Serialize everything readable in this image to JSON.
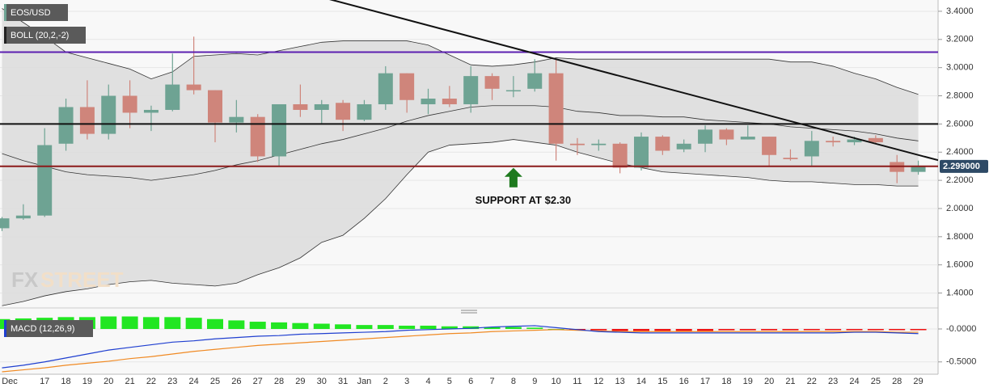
{
  "chart_data": [
    {
      "type": "candlestick",
      "symbol": "EOS/USD",
      "indicator": "BOLL (20,2,-2)",
      "watermark": [
        "FX",
        "STREET"
      ],
      "categories": [
        "Dec",
        null,
        "17",
        "18",
        "19",
        "20",
        "21",
        "22",
        "23",
        "24",
        "25",
        "26",
        "27",
        "28",
        "29",
        "30",
        "31",
        "Jan",
        "2",
        "3",
        "4",
        "5",
        "6",
        "7",
        "8",
        "9",
        "10",
        "11",
        "12",
        "13",
        "14",
        "15",
        "16",
        "17",
        "18",
        "19",
        "20",
        "21",
        "22",
        "23",
        "24",
        "25",
        "28",
        "29"
      ],
      "open": [
        1.86,
        1.93,
        1.95,
        2.46,
        2.72,
        2.53,
        2.8,
        2.68,
        2.7,
        2.88,
        2.84,
        2.61,
        2.65,
        2.37,
        2.74,
        2.7,
        2.75,
        2.63,
        2.74,
        2.96,
        2.74,
        2.78,
        2.74,
        2.94,
        2.84,
        2.85,
        2.96,
        2.46,
        2.45,
        2.46,
        2.29,
        2.51,
        2.42,
        2.46,
        2.56,
        2.49,
        2.51,
        2.36,
        2.37,
        2.48,
        2.47,
        2.5,
        2.33,
        2.26
      ],
      "high": [
        1.94,
        2.03,
        2.57,
        2.78,
        2.91,
        2.88,
        2.91,
        2.73,
        3.1,
        3.22,
        2.84,
        2.77,
        2.67,
        2.74,
        2.88,
        2.77,
        2.77,
        2.77,
        3.01,
        2.96,
        2.85,
        2.87,
        3.01,
        2.96,
        2.94,
        3.06,
        3.06,
        2.5,
        2.49,
        2.47,
        2.54,
        2.52,
        2.49,
        2.59,
        2.57,
        2.59,
        2.51,
        2.42,
        2.55,
        2.51,
        2.51,
        2.52,
        2.38,
        2.34
      ],
      "low": [
        1.84,
        1.92,
        1.94,
        2.41,
        2.49,
        2.49,
        2.57,
        2.55,
        2.69,
        2.81,
        2.47,
        2.54,
        2.33,
        2.3,
        2.65,
        2.6,
        2.55,
        2.62,
        2.7,
        2.68,
        2.67,
        2.72,
        2.68,
        2.77,
        2.79,
        2.83,
        2.34,
        2.38,
        2.41,
        2.25,
        2.27,
        2.38,
        2.4,
        2.4,
        2.45,
        2.49,
        2.3,
        2.34,
        2.3,
        2.44,
        2.45,
        2.46,
        2.18,
        2.24
      ],
      "close": [
        1.93,
        1.95,
        2.45,
        2.72,
        2.53,
        2.8,
        2.68,
        2.7,
        2.88,
        2.84,
        2.61,
        2.65,
        2.37,
        2.74,
        2.7,
        2.74,
        2.63,
        2.74,
        2.96,
        2.77,
        2.78,
        2.74,
        2.94,
        2.85,
        2.84,
        2.96,
        2.46,
        2.45,
        2.46,
        2.29,
        2.51,
        2.41,
        2.46,
        2.56,
        2.49,
        2.51,
        2.38,
        2.35,
        2.48,
        2.47,
        2.49,
        2.47,
        2.26,
        2.3
      ],
      "up_color": "#6ea393",
      "down_color": "#cf857b",
      "bands": {
        "color": "#333333",
        "fill": "#dcdcdc",
        "upper": [
          3.42,
          3.32,
          3.22,
          3.11,
          3.07,
          3.03,
          2.99,
          2.92,
          2.97,
          3.08,
          3.09,
          3.1,
          3.09,
          3.12,
          3.15,
          3.18,
          3.19,
          3.19,
          3.19,
          3.19,
          3.16,
          3.09,
          3.02,
          3.01,
          3.02,
          3.04,
          3.07,
          3.06,
          3.06,
          3.06,
          3.06,
          3.06,
          3.06,
          3.06,
          3.06,
          3.06,
          3.06,
          3.04,
          3.04,
          3.01,
          2.96,
          2.92,
          2.86,
          2.81
        ],
        "middle": [
          2.39,
          2.34,
          2.3,
          2.26,
          2.24,
          2.23,
          2.22,
          2.2,
          2.22,
          2.24,
          2.27,
          2.31,
          2.34,
          2.38,
          2.42,
          2.46,
          2.49,
          2.53,
          2.57,
          2.62,
          2.66,
          2.69,
          2.72,
          2.73,
          2.73,
          2.73,
          2.72,
          2.69,
          2.68,
          2.66,
          2.66,
          2.65,
          2.65,
          2.63,
          2.62,
          2.61,
          2.6,
          2.58,
          2.57,
          2.56,
          2.55,
          2.53,
          2.5,
          2.48
        ],
        "lower": [
          1.31,
          1.34,
          1.38,
          1.41,
          1.43,
          1.46,
          1.48,
          1.49,
          1.47,
          1.46,
          1.45,
          1.47,
          1.53,
          1.58,
          1.65,
          1.76,
          1.81,
          1.93,
          2.07,
          2.24,
          2.4,
          2.45,
          2.46,
          2.47,
          2.49,
          2.47,
          2.45,
          2.4,
          2.36,
          2.32,
          2.29,
          2.26,
          2.25,
          2.24,
          2.23,
          2.22,
          2.2,
          2.19,
          2.19,
          2.18,
          2.17,
          2.17,
          2.16,
          2.16
        ]
      },
      "hlines": [
        {
          "value": 3.11,
          "color": "#5b1fb0"
        },
        {
          "value": 2.6,
          "color": "#111111"
        },
        {
          "value": 2.3,
          "color": "#8b1a1a"
        }
      ],
      "trendline": {
        "x": [
          16,
          43
        ],
        "values": [
          3.46,
          2.38
        ],
        "color": "#111111"
      },
      "annotation": {
        "text": "SUPPORT AT $2.30",
        "x": 24,
        "value": 2.3,
        "color": "#1e7a1e"
      },
      "last_price": {
        "value": 2.299,
        "label": "2.299000"
      },
      "ylim": [
        1.3,
        3.48
      ],
      "yticks": [
        {
          "value": 1.4,
          "label": "1.4000"
        },
        {
          "value": 1.6,
          "label": "1.6000"
        },
        {
          "value": 1.8,
          "label": "1.8000"
        },
        {
          "value": 2.0,
          "label": "2.0000"
        },
        {
          "value": 2.2,
          "label": "2.2000"
        },
        {
          "value": 2.4,
          "label": "2.4000"
        },
        {
          "value": 2.6,
          "label": "2.6000"
        },
        {
          "value": 2.8,
          "label": "2.8000"
        },
        {
          "value": 3.0,
          "label": "3.0000"
        },
        {
          "value": 3.2,
          "label": "3.2000"
        },
        {
          "value": 3.4,
          "label": "3.4000"
        }
      ],
      "grid": true
    },
    {
      "type": "macd",
      "indicator": "MACD (12,26,9)",
      "histogram": [
        0.15,
        0.16,
        0.17,
        0.18,
        0.18,
        0.19,
        0.19,
        0.18,
        0.18,
        0.17,
        0.15,
        0.13,
        0.11,
        0.1,
        0.09,
        0.08,
        0.07,
        0.06,
        0.06,
        0.05,
        0.05,
        0.04,
        0.04,
        0.03,
        0.03,
        0.02,
        0.0,
        -0.01,
        -0.02,
        -0.03,
        -0.03,
        -0.03,
        -0.03,
        -0.03,
        -0.02,
        -0.02,
        -0.02,
        -0.02,
        -0.01,
        -0.01,
        -0.01,
        -0.01,
        -0.01,
        -0.01
      ],
      "pos_color": "#22e622",
      "neg_color": "#ee1111",
      "macd": {
        "color": "#1f3fd0",
        "values": [
          -0.59,
          -0.55,
          -0.5,
          -0.44,
          -0.38,
          -0.32,
          -0.28,
          -0.24,
          -0.2,
          -0.18,
          -0.15,
          -0.13,
          -0.11,
          -0.1,
          -0.08,
          -0.07,
          -0.06,
          -0.05,
          -0.04,
          -0.02,
          -0.01,
          0.0,
          0.01,
          0.03,
          0.04,
          0.05,
          0.02,
          -0.01,
          -0.04,
          -0.05,
          -0.06,
          -0.06,
          -0.06,
          -0.06,
          -0.06,
          -0.06,
          -0.06,
          -0.06,
          -0.06,
          -0.06,
          -0.05,
          -0.05,
          -0.06,
          -0.07
        ]
      },
      "signal": {
        "color": "#f08a24",
        "values": [
          -0.65,
          -0.62,
          -0.59,
          -0.55,
          -0.52,
          -0.49,
          -0.45,
          -0.42,
          -0.38,
          -0.34,
          -0.31,
          -0.28,
          -0.25,
          -0.23,
          -0.21,
          -0.19,
          -0.17,
          -0.15,
          -0.13,
          -0.11,
          -0.09,
          -0.07,
          -0.06,
          -0.04,
          -0.03,
          -0.02,
          -0.01,
          -0.02,
          -0.03,
          -0.04,
          -0.04,
          -0.04,
          -0.04,
          -0.04,
          -0.04,
          -0.04,
          -0.04,
          -0.04,
          -0.04,
          -0.04,
          -0.04,
          -0.04,
          -0.05,
          -0.05
        ]
      },
      "ylim": [
        -0.65,
        0.27
      ],
      "yticks": [
        {
          "value": 0,
          "label": "-0.0000"
        },
        {
          "value": -0.5,
          "label": "-0.5000"
        }
      ],
      "grid": true
    }
  ]
}
